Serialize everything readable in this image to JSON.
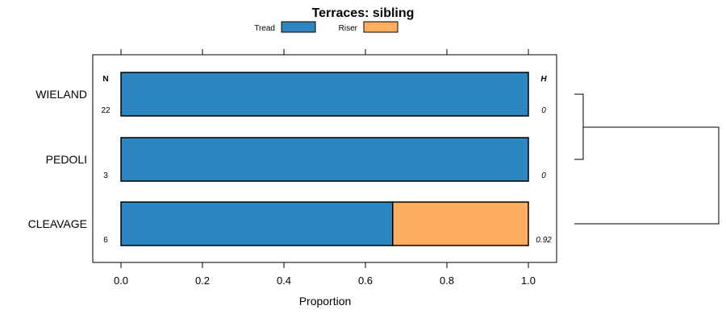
{
  "chart_data": {
    "type": "bar",
    "orientation": "horizontal",
    "stacked": true,
    "title": "Terraces: sibling",
    "xlabel": "Proportion",
    "ylabel": "",
    "xlim": [
      -0.07,
      1.07
    ],
    "x_ticks": [
      "0.0",
      "0.2",
      "0.4",
      "0.6",
      "0.8",
      "1.0"
    ],
    "x_tick_values": [
      0,
      0.2,
      0.4,
      0.6,
      0.8,
      1.0
    ],
    "categories": [
      "WIELAND",
      "PEDOLI",
      "CLEAVAGE"
    ],
    "series": [
      {
        "name": "Tread",
        "color": "#2e86c1",
        "values": [
          1.0,
          1.0,
          0.667
        ]
      },
      {
        "name": "Riser",
        "color": "#ffad60",
        "values": [
          0.0,
          0.0,
          0.333
        ]
      }
    ],
    "legend_position": "top",
    "left_annotation": {
      "header": "N",
      "values": [
        "22",
        "3",
        "6"
      ]
    },
    "right_annotation": {
      "header": "H",
      "values": [
        "0",
        "0",
        "0.92"
      ]
    },
    "dendrogram": true,
    "grid": false
  }
}
